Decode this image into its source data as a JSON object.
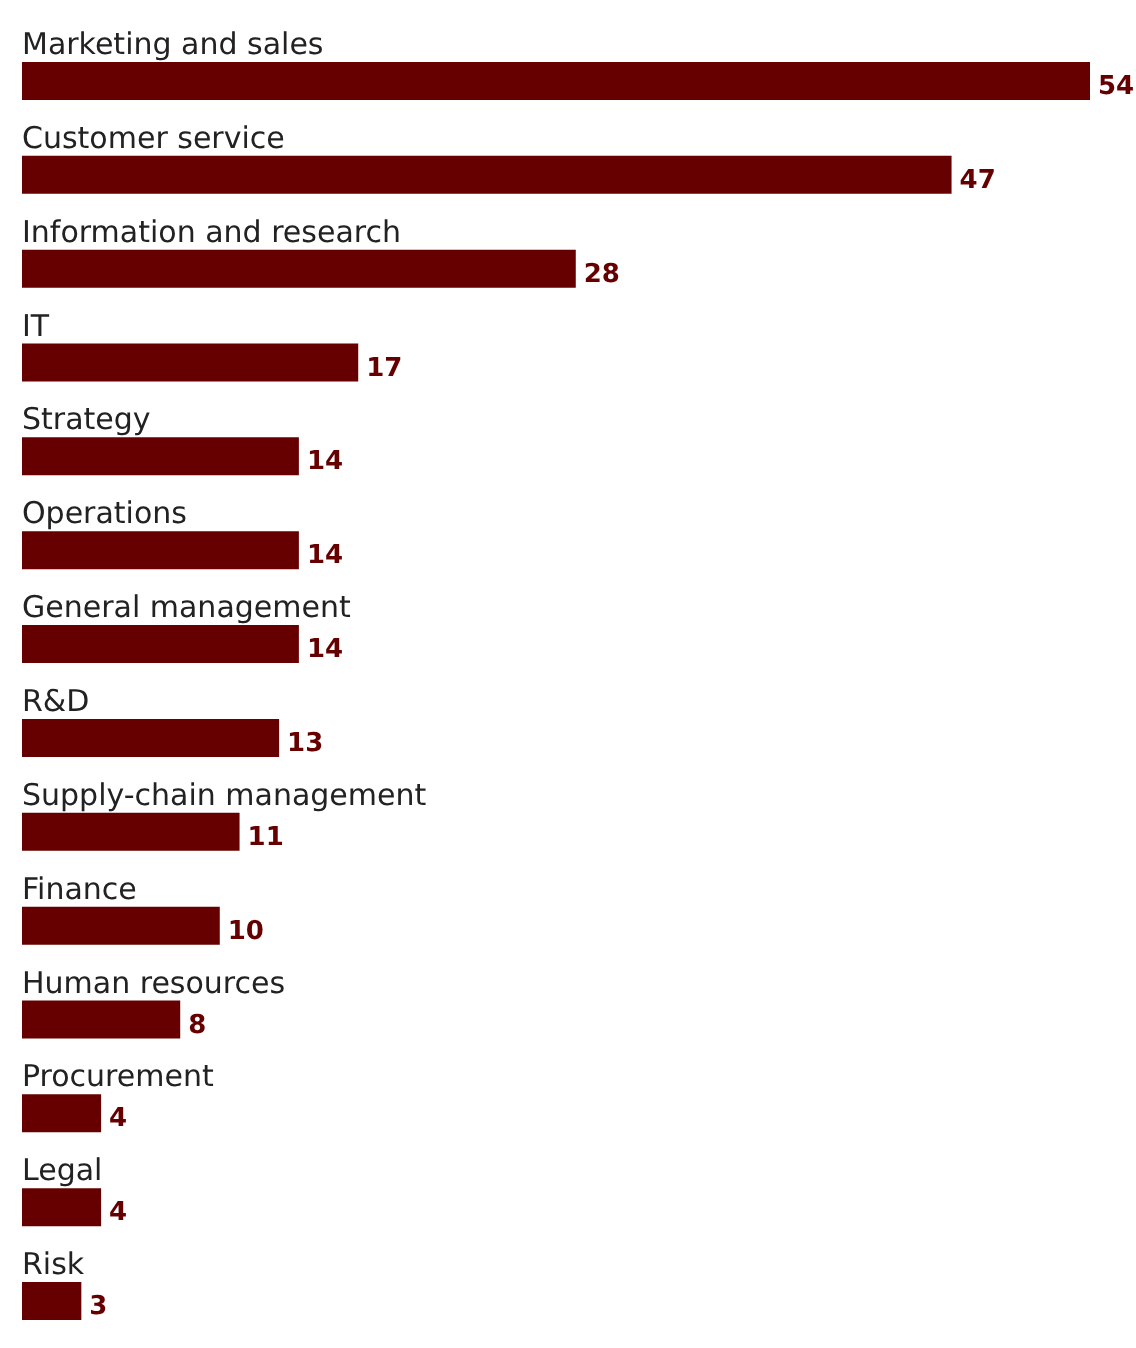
{
  "chart_data": {
    "type": "bar",
    "orientation": "horizontal",
    "categories": [
      "Marketing and sales",
      "Customer service",
      "Information and research",
      "IT",
      "Strategy",
      "Operations",
      "General management",
      "R&D",
      "Supply-chain management",
      "Finance",
      "Human resources",
      "Procurement",
      "Legal",
      "Risk"
    ],
    "values": [
      54,
      47,
      28,
      17,
      14,
      14,
      14,
      13,
      11,
      10,
      8,
      4,
      4,
      3
    ],
    "color": "#660000",
    "data_labels": true
  }
}
